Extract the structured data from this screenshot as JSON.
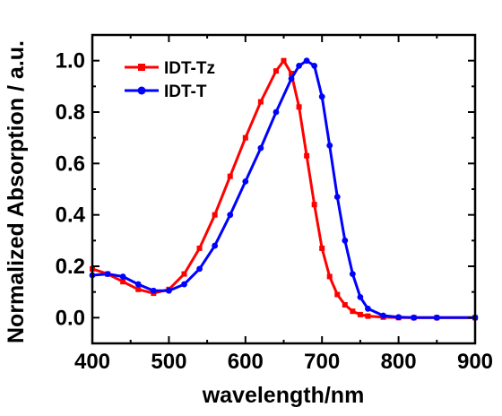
{
  "chart_data": {
    "type": "line",
    "title": "",
    "xlabel": "wavelength/nm",
    "ylabel": "Normalized Absorption / a.u.",
    "xlim": [
      400,
      900
    ],
    "ylim": [
      -0.1,
      1.1
    ],
    "xticks": [
      "400",
      "500",
      "600",
      "700",
      "800",
      "900"
    ],
    "yticks": [
      "0.0",
      "0.2",
      "0.4",
      "0.6",
      "0.8",
      "1.0"
    ],
    "grid": false,
    "legend_position": "top-left",
    "series": [
      {
        "name": "IDT-Tz",
        "color": "#ff0000",
        "marker": "square",
        "x": [
          400,
          420,
          440,
          460,
          480,
          500,
          520,
          540,
          560,
          580,
          600,
          620,
          640,
          650,
          660,
          670,
          680,
          690,
          700,
          710,
          720,
          730,
          740,
          750,
          760,
          780,
          800,
          820,
          850,
          900
        ],
        "y": [
          0.19,
          0.17,
          0.14,
          0.11,
          0.095,
          0.11,
          0.17,
          0.27,
          0.4,
          0.55,
          0.7,
          0.84,
          0.96,
          1.0,
          0.95,
          0.82,
          0.63,
          0.44,
          0.27,
          0.16,
          0.09,
          0.05,
          0.025,
          0.012,
          0.006,
          0.002,
          0.0,
          0.0,
          0.0,
          0.0
        ]
      },
      {
        "name": "IDT-T",
        "color": "#0000ff",
        "marker": "circle",
        "x": [
          400,
          420,
          440,
          460,
          480,
          500,
          520,
          540,
          560,
          580,
          600,
          620,
          640,
          660,
          670,
          680,
          690,
          700,
          710,
          720,
          730,
          740,
          750,
          760,
          780,
          800,
          820,
          850,
          900
        ],
        "y": [
          0.165,
          0.17,
          0.16,
          0.13,
          0.105,
          0.105,
          0.13,
          0.19,
          0.28,
          0.4,
          0.53,
          0.66,
          0.8,
          0.93,
          0.98,
          1.0,
          0.98,
          0.86,
          0.67,
          0.47,
          0.3,
          0.17,
          0.08,
          0.035,
          0.008,
          0.002,
          0.0,
          0.0,
          0.0
        ]
      }
    ]
  }
}
